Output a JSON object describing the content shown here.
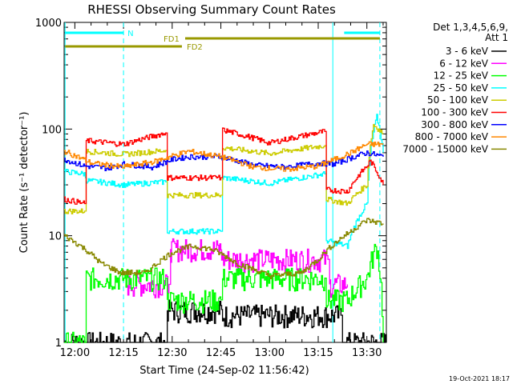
{
  "chart_data": {
    "type": "line",
    "title": "RHESSI Observing Summary Count Rates",
    "xlabel": "Start Time (24-Sep-02 11:56:42)",
    "ylabel": "Count Rate (s⁻¹ detector⁻¹)",
    "y_scale": "log",
    "xlim": [
      "11:56:42",
      "13:36:00"
    ],
    "ylim": [
      1,
      1000
    ],
    "x_ticks": [
      "12:00",
      "12:15",
      "12:30",
      "12:45",
      "13:00",
      "13:15",
      "13:30"
    ],
    "y_ticks": [
      "1",
      "10",
      "100",
      "1000"
    ],
    "legend_position": "right",
    "legend_header": [
      "Det 1,3,4,5,6,9,",
      "Att 1"
    ],
    "footer_date": "19-Oct-2021 18:17",
    "bars": [
      {
        "label": "N",
        "color": "#00ffff",
        "segments": [
          [
            "11:57:00",
            "12:15:00"
          ],
          [
            "13:23:00",
            "13:34:00"
          ]
        ]
      },
      {
        "label": "FD1",
        "color": "#999900",
        "segments": [
          [
            "12:34:00",
            "13:34:00"
          ]
        ]
      },
      {
        "label": "FD2",
        "color": "#999900",
        "segments": [
          [
            "11:57:00",
            "12:33:00"
          ]
        ]
      }
    ],
    "vlines": [
      {
        "time": "11:57:00",
        "style": "solid",
        "color": "#00ffff"
      },
      {
        "time": "12:15:00",
        "style": "dashed",
        "color": "#00ffff"
      },
      {
        "time": "13:19:30",
        "style": "solid",
        "color": "#00ffff"
      },
      {
        "time": "13:34:00",
        "style": "dashed",
        "color": "#00ffff"
      }
    ],
    "series": [
      {
        "name": "3 - 6 keV",
        "color": "#000000",
        "x": [
          "11:56:42",
          "12:28:00",
          "12:28:30",
          "12:45:00",
          "12:45:30",
          "13:17:00",
          "13:17:30",
          "13:22:00",
          "13:22:30",
          "13:36:00"
        ],
        "y": [
          1,
          1,
          2,
          2,
          1.8,
          1.8,
          1.8,
          1.8,
          1,
          1
        ]
      },
      {
        "name": "6 - 12 keV",
        "color": "#ff00ff",
        "x": [
          "12:16:00",
          "12:29:00",
          "12:29:30",
          "12:45:00",
          "12:45:30",
          "13:18:00",
          "13:18:30",
          "13:24:00"
        ],
        "y": [
          3.5,
          3.5,
          7.5,
          7.5,
          6.0,
          6.0,
          3.5,
          3.5
        ]
      },
      {
        "name": "12 - 25 keV",
        "color": "#00ff00",
        "x": [
          "11:56:42",
          "12:03:00",
          "12:03:30",
          "12:28:00",
          "12:28:30",
          "12:45:00",
          "12:45:30",
          "13:17:00",
          "13:17:30",
          "13:24:00",
          "13:30:00",
          "13:33:00",
          "13:35:00"
        ],
        "y": [
          1,
          1,
          4,
          4,
          2.5,
          2.5,
          4,
          4,
          2.5,
          2.5,
          4,
          8,
          1
        ]
      },
      {
        "name": "25 - 50 keV",
        "color": "#00ffff",
        "x": [
          "11:56:42",
          "12:03:00",
          "12:03:30",
          "12:15:00",
          "12:28:00",
          "12:28:30",
          "12:45:00",
          "12:45:30",
          "13:00:00",
          "13:17:00",
          "13:17:30",
          "13:24:00",
          "13:30:00",
          "13:33:00",
          "13:35:00"
        ],
        "y": [
          40,
          38,
          33,
          30,
          32,
          11,
          11,
          35,
          31,
          38,
          9,
          8,
          20,
          130,
          60
        ]
      },
      {
        "name": "50 - 100 keV",
        "color": "#cccc00",
        "x": [
          "11:56:42",
          "12:03:00",
          "12:03:30",
          "12:15:00",
          "12:28:00",
          "12:28:30",
          "12:45:00",
          "12:45:30",
          "13:00:00",
          "13:17:00",
          "13:17:30",
          "13:24:00",
          "13:30:00",
          "13:32:00",
          "13:35:00"
        ],
        "y": [
          17,
          17,
          62,
          58,
          63,
          24,
          24,
          67,
          59,
          70,
          22,
          20,
          30,
          110,
          90
        ]
      },
      {
        "name": "100 - 300 keV",
        "color": "#ff0000",
        "x": [
          "11:56:42",
          "12:03:00",
          "12:03:30",
          "12:15:00",
          "12:28:00",
          "12:28:30",
          "12:45:00",
          "12:45:30",
          "13:00:00",
          "13:17:00",
          "13:17:30",
          "13:24:00",
          "13:30:00",
          "13:31:00",
          "13:35:00"
        ],
        "y": [
          22,
          20,
          78,
          72,
          92,
          35,
          35,
          98,
          74,
          95,
          27,
          26,
          45,
          50,
          30
        ]
      },
      {
        "name": "300 - 800 keV",
        "color": "#0000ff",
        "x": [
          "11:56:42",
          "12:03:00",
          "12:10:00",
          "12:15:00",
          "12:24:00",
          "12:30:00",
          "12:35:00",
          "12:45:00",
          "12:55:00",
          "13:05:00",
          "13:15:00",
          "13:20:00",
          "13:26:00",
          "13:30:00",
          "13:35:00"
        ],
        "y": [
          52,
          45,
          43,
          47,
          44,
          52,
          55,
          55,
          46,
          44,
          48,
          47,
          55,
          60,
          55
        ]
      },
      {
        "name": "800 - 7000 keV",
        "color": "#ff8800",
        "x": [
          "11:56:42",
          "12:05:00",
          "12:15:00",
          "12:25:00",
          "12:35:00",
          "12:45:00",
          "12:55:00",
          "13:05:00",
          "13:15:00",
          "13:20:00",
          "13:25:00",
          "13:30:00",
          "13:35:00"
        ],
        "y": [
          62,
          48,
          44,
          50,
          62,
          55,
          44,
          42,
          45,
          52,
          60,
          72,
          72
        ]
      },
      {
        "name": "7000 - 15000 keV",
        "color": "#888800",
        "x": [
          "11:56:42",
          "12:03:00",
          "12:08:00",
          "12:14:00",
          "12:22:00",
          "12:30:00",
          "12:36:00",
          "12:42:00",
          "12:50:00",
          "13:00:00",
          "13:10:00",
          "13:15:00",
          "13:20:00",
          "13:25:00",
          "13:30:00",
          "13:35:00"
        ],
        "y": [
          10,
          7.5,
          5.5,
          4.5,
          4.5,
          7,
          8,
          7.5,
          5.5,
          4.2,
          4.5,
          6,
          8.5,
          11,
          14,
          13
        ]
      }
    ]
  }
}
